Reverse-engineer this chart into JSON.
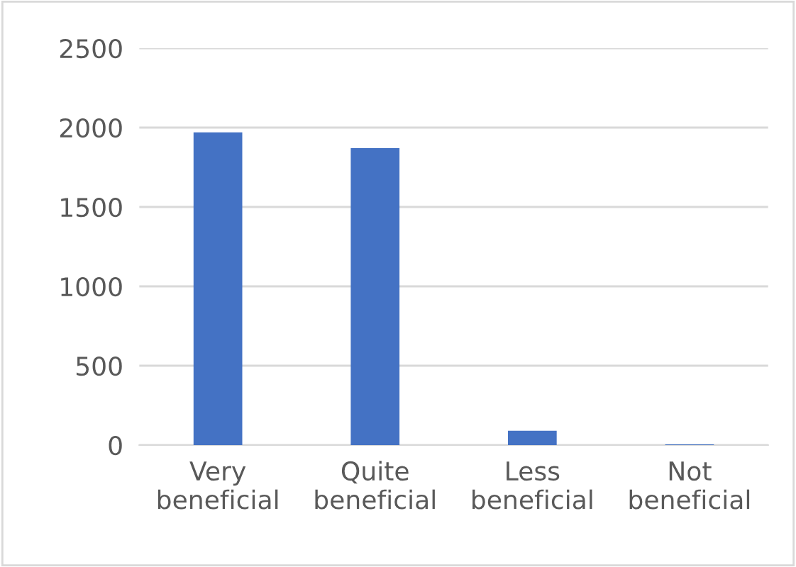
{
  "chart_data": {
    "type": "bar",
    "categories": [
      "Very\nbeneficial",
      "Quite\nbeneficial",
      "Less\nbeneficial",
      "Not\nbeneficial"
    ],
    "values": [
      1970,
      1870,
      90,
      5
    ],
    "color": "#4472c4",
    "ylim": [
      0,
      2500
    ],
    "yticks": [
      0,
      500,
      1000,
      1500,
      2000,
      2500
    ],
    "grid": "y"
  }
}
